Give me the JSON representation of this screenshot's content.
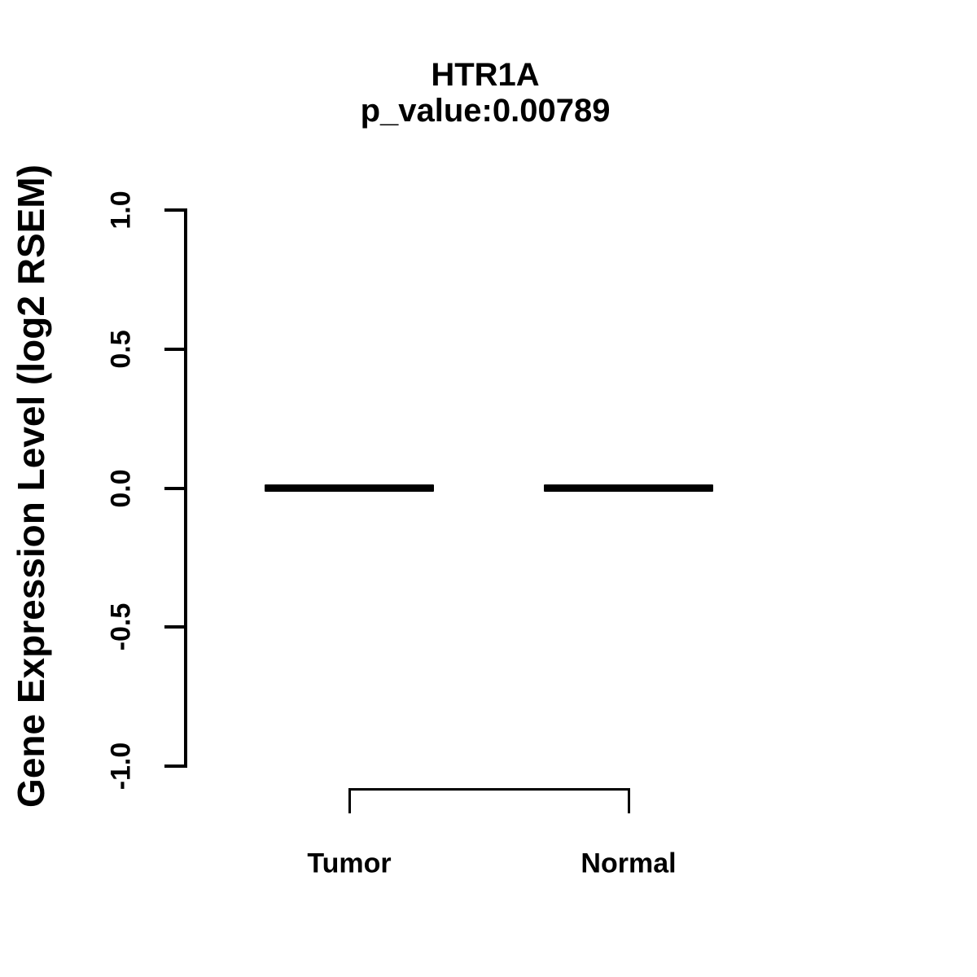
{
  "header": {
    "title": "HTR1A",
    "subtitle": "p_value:0.00789"
  },
  "chart_data": {
    "type": "boxplot",
    "title": "HTR1A",
    "subtitle": "p_value:0.00789",
    "xlabel": "",
    "ylabel": "Gene Expression Level (log2 RSEM)",
    "ylim": [
      -1.0,
      1.0
    ],
    "yticks": [
      {
        "value": 1.0,
        "label": "1.0"
      },
      {
        "value": 0.5,
        "label": "0.5"
      },
      {
        "value": 0.0,
        "label": "0.0"
      },
      {
        "value": -0.5,
        "label": "-0.5"
      },
      {
        "value": -1.0,
        "label": "-1.0"
      }
    ],
    "grid": false,
    "legend": "none",
    "categories": [
      "Tumor",
      "Normal"
    ],
    "groups": [
      {
        "label": "Tumor",
        "median": 0.0,
        "q1": 0.0,
        "q3": 0.0,
        "whisker_low": 0.0,
        "whisker_high": 0.0
      },
      {
        "label": "Normal",
        "median": 0.0,
        "q1": 0.0,
        "q3": 0.0,
        "whisker_low": 0.0,
        "whisker_high": 0.0
      }
    ],
    "annotations": [
      {
        "type": "comparison-bracket",
        "from": "Tumor",
        "to": "Normal",
        "label": ""
      }
    ]
  },
  "colors": {
    "foreground": "#000000",
    "background": "#ffffff"
  }
}
